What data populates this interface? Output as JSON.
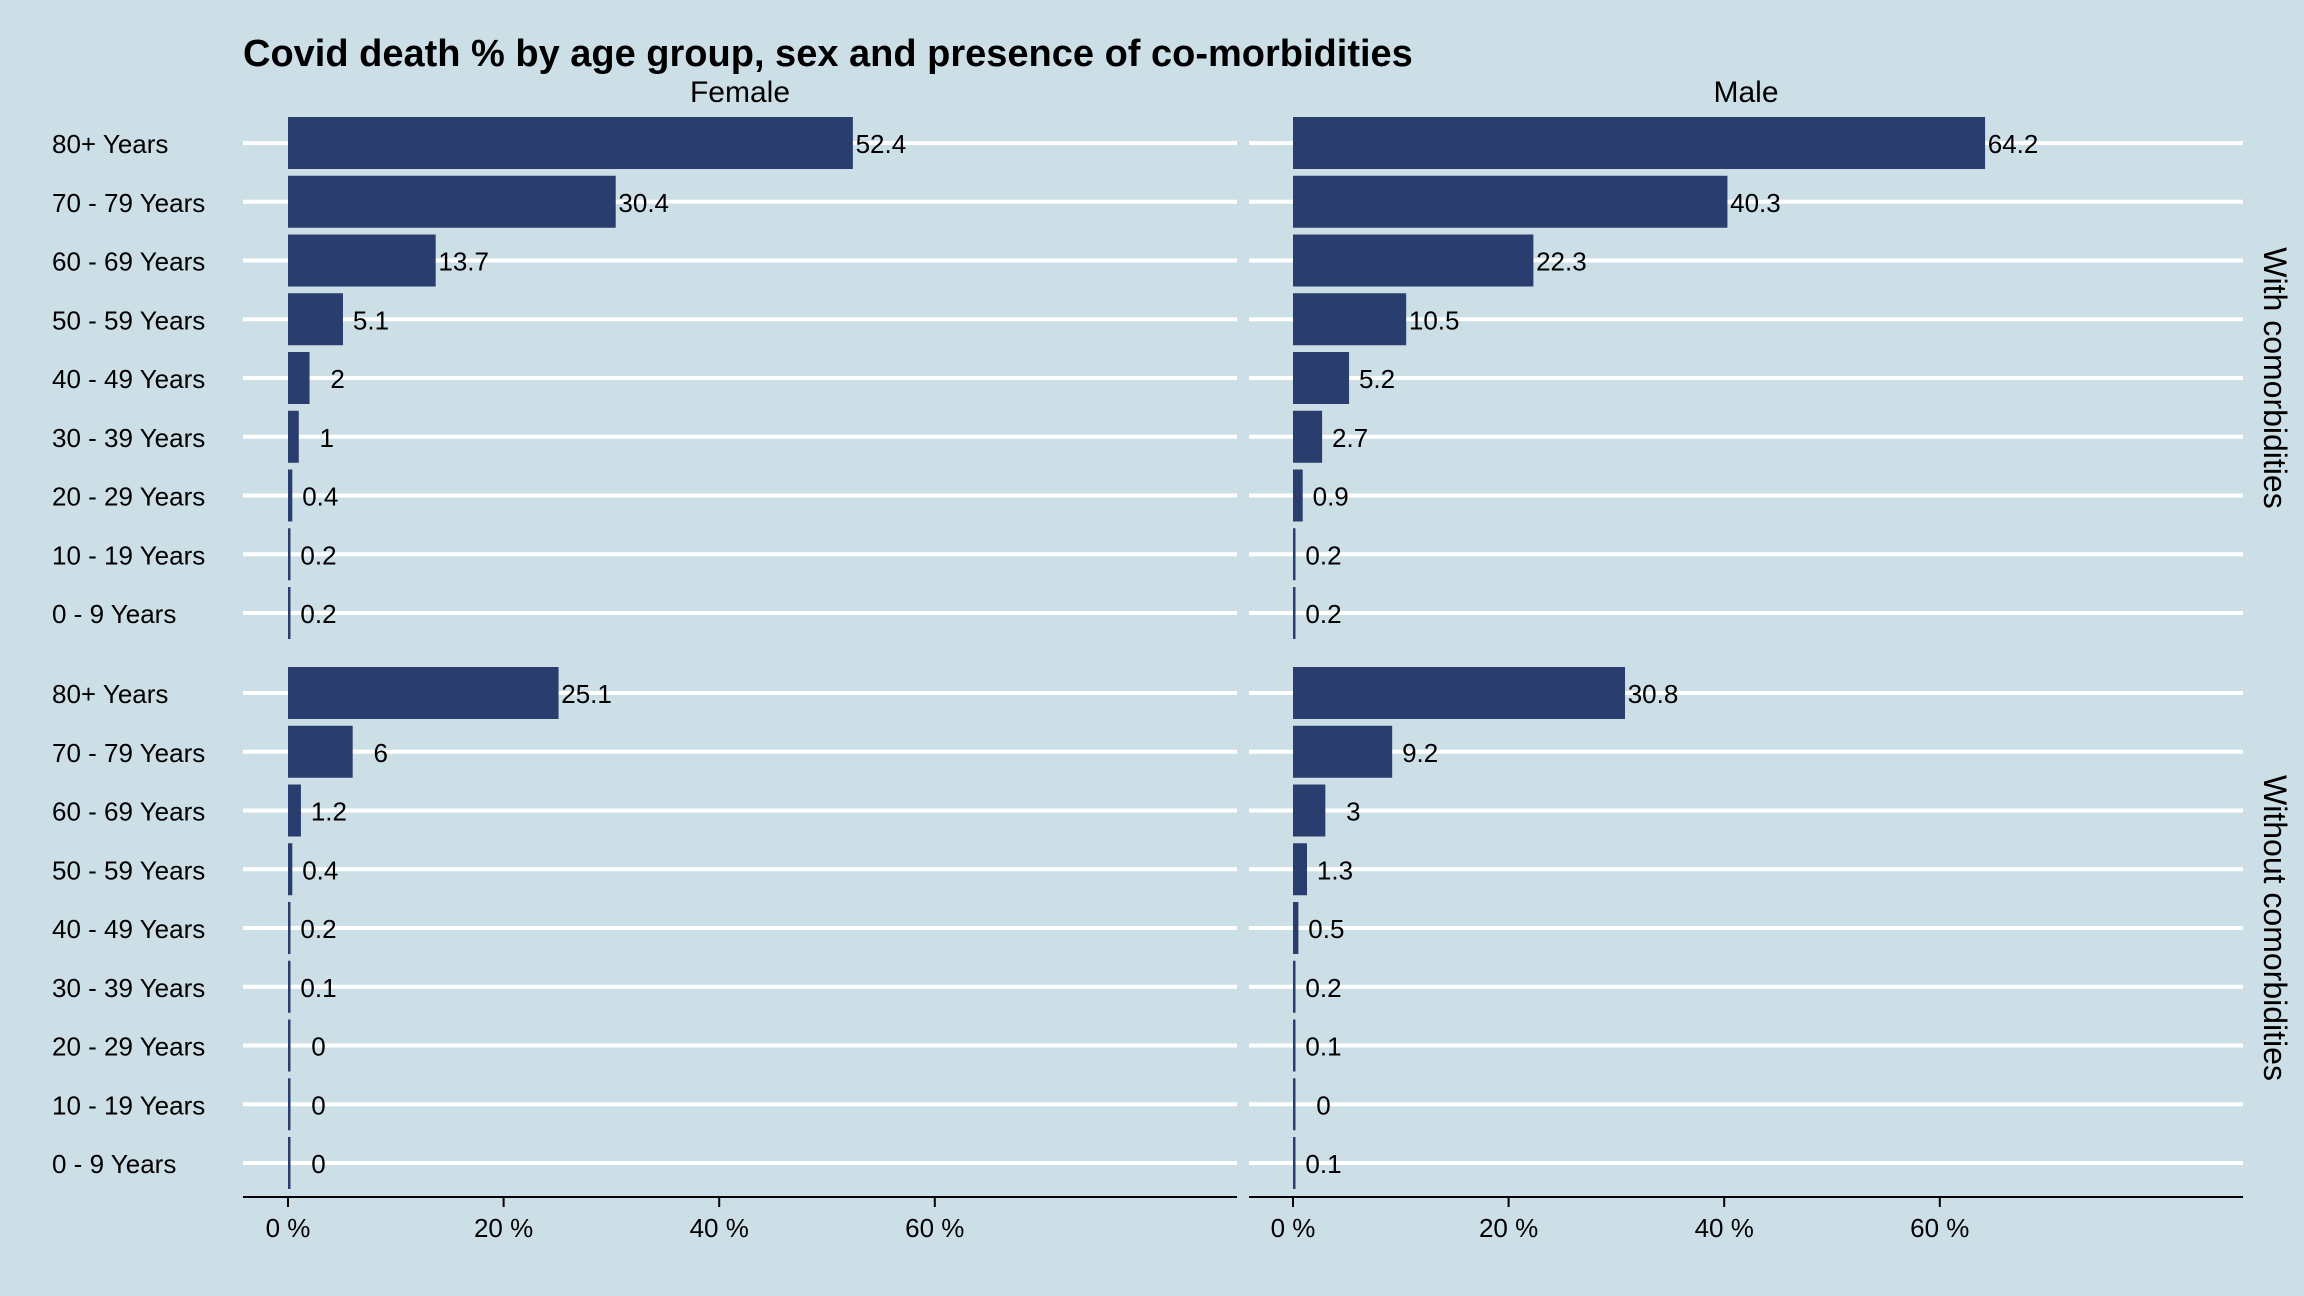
{
  "chart_data": {
    "type": "bar",
    "orientation": "horizontal",
    "title": "Covid death % by age group, sex and presence of co-morbidities",
    "xlim": [
      0,
      70
    ],
    "x_ticks": [
      0,
      20,
      40,
      60
    ],
    "x_tick_labels": [
      "0 %",
      "20 %",
      "40 %",
      "60 %"
    ],
    "grid": "horizontal lines per category, white",
    "columns": [
      "Female",
      "Male"
    ],
    "rows": [
      "With comorbidities",
      "Without comorbidities"
    ],
    "categories": [
      "80+ Years",
      "70 - 79 Years",
      "60 - 69 Years",
      "50 - 59 Years",
      "40 - 49 Years",
      "30 - 39 Years",
      "20 - 29 Years",
      "10 - 19 Years",
      "0 - 9 Years"
    ],
    "panels": [
      {
        "column": "Female",
        "row": "With comorbidities",
        "values": [
          52.4,
          30.4,
          13.7,
          5.1,
          2,
          1,
          0.4,
          0.2,
          0.2
        ]
      },
      {
        "column": "Male",
        "row": "With comorbidities",
        "values": [
          64.2,
          40.3,
          22.3,
          10.5,
          5.2,
          2.7,
          0.9,
          0.2,
          0.2
        ]
      },
      {
        "column": "Female",
        "row": "Without comorbidities",
        "values": [
          25.1,
          6,
          1.2,
          0.4,
          0.2,
          0.1,
          0,
          0,
          0
        ]
      },
      {
        "column": "Male",
        "row": "Without comorbidities",
        "values": [
          30.8,
          9.2,
          3,
          1.3,
          0.5,
          0.2,
          0.1,
          0,
          0.1
        ]
      }
    ],
    "colors": {
      "background": "#cddfe6",
      "bar": "#293e6f",
      "grid": "#ffffff",
      "text": "#000000"
    }
  }
}
